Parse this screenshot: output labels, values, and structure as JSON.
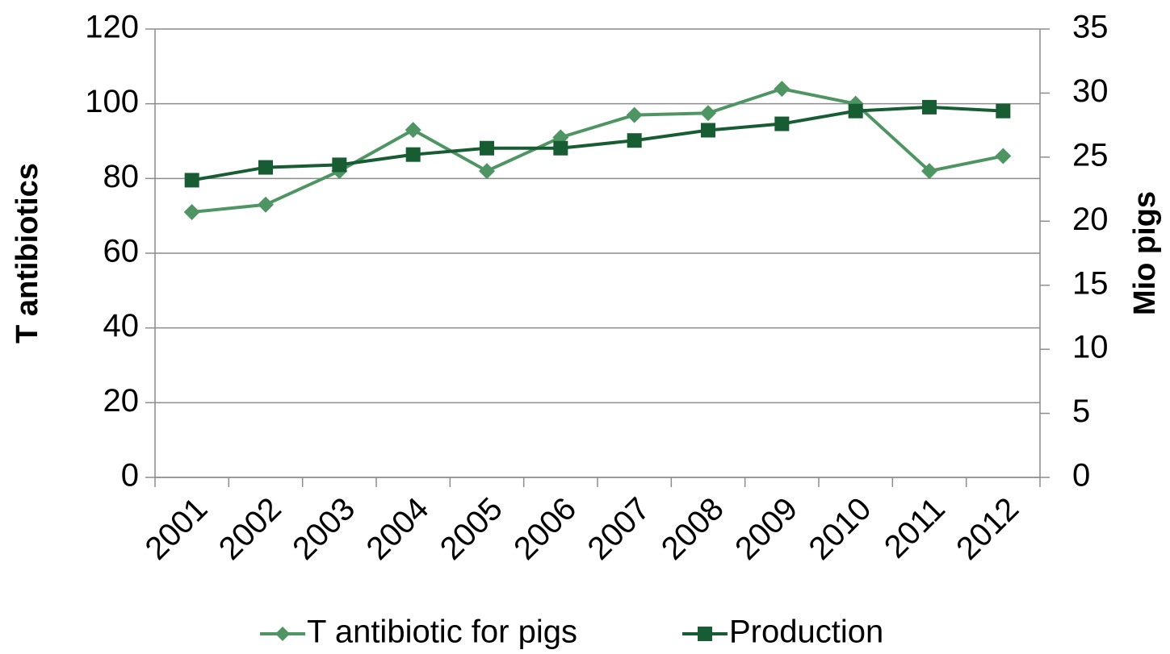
{
  "chart_data": {
    "type": "line",
    "categories": [
      "2001",
      "2002",
      "2003",
      "2004",
      "2005",
      "2006",
      "2007",
      "2008",
      "2009",
      "2010",
      "2011",
      "2012"
    ],
    "ylabel": "T antibiotics",
    "y2label": "Mio pigs",
    "ylim": [
      0,
      120
    ],
    "yticks": [
      0,
      20,
      40,
      60,
      80,
      100,
      120
    ],
    "y2lim": [
      0,
      35
    ],
    "y2ticks": [
      0,
      5,
      10,
      15,
      20,
      25,
      30,
      35
    ],
    "grid": true,
    "legend": "bottom",
    "series": [
      {
        "name": "T antibiotic for pigs",
        "color": "#4f9563",
        "marker": "diamond",
        "values": [
          71,
          73,
          82,
          93,
          82,
          91,
          97,
          97.5,
          104,
          100,
          82,
          86
        ]
      },
      {
        "name": "Production",
        "color": "#175c33",
        "marker": "square",
        "axis": "y2",
        "values": [
          23.2,
          24.2,
          24.4,
          25.2,
          25.7,
          25.7,
          26.3,
          27.1,
          27.6,
          28.6,
          28.9,
          28.6
        ]
      }
    ]
  }
}
